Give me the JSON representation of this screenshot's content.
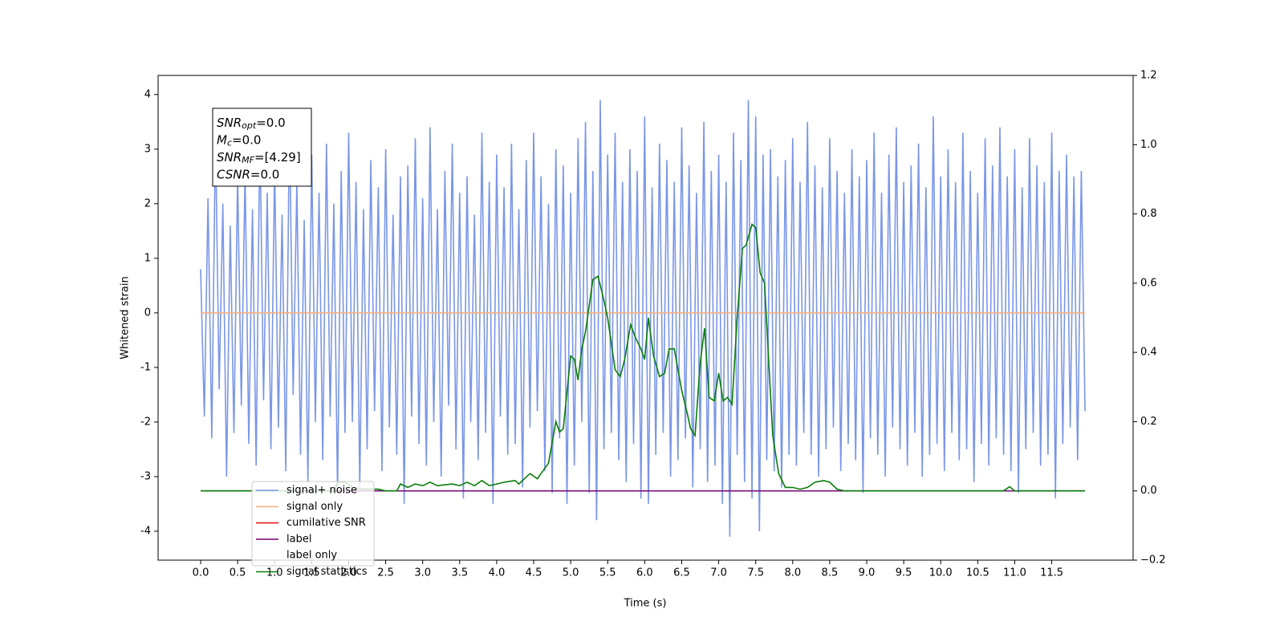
{
  "chart_data": {
    "type": "line",
    "xlabel": "Time (s)",
    "ylabel": "Whitened strain",
    "xlim": [
      -0.575,
      12.6
    ],
    "ylim": [
      -4.53,
      4.35
    ],
    "y2lim": [
      -0.2,
      1.2
    ],
    "xticks": [
      {
        "value": 0,
        "label": "0.0"
      },
      {
        "value": 0.5,
        "label": "0.5"
      },
      {
        "value": 1,
        "label": "1.0"
      },
      {
        "value": 1.5,
        "label": "1.5"
      },
      {
        "value": 2,
        "label": "2.0"
      },
      {
        "value": 2.5,
        "label": "2.5"
      },
      {
        "value": 3,
        "label": "3.0"
      },
      {
        "value": 3.5,
        "label": "3.5"
      },
      {
        "value": 4,
        "label": "4.0"
      },
      {
        "value": 4.5,
        "label": "4.5"
      },
      {
        "value": 5,
        "label": "5.0"
      },
      {
        "value": 5.5,
        "label": "5.5"
      },
      {
        "value": 6,
        "label": "6.0"
      },
      {
        "value": 6.5,
        "label": "6.5"
      },
      {
        "value": 7,
        "label": "7.0"
      },
      {
        "value": 7.5,
        "label": "7.5"
      },
      {
        "value": 8,
        "label": "8.0"
      },
      {
        "value": 8.5,
        "label": "8.5"
      },
      {
        "value": 9,
        "label": "9.0"
      },
      {
        "value": 9.5,
        "label": "9.5"
      },
      {
        "value": 10,
        "label": "10.0"
      },
      {
        "value": 10.5,
        "label": "10.5"
      },
      {
        "value": 11,
        "label": "11.0"
      },
      {
        "value": 11.5,
        "label": "11.5"
      }
    ],
    "yticks": [
      -4,
      -3,
      -2,
      -1,
      0,
      1,
      2,
      3,
      4
    ],
    "y2ticks": [
      {
        "value": -0.2,
        "label": "−0.2"
      },
      {
        "value": 0,
        "label": "0.0"
      },
      {
        "value": 0.2,
        "label": "0.2"
      },
      {
        "value": 0.4,
        "label": "0.4"
      },
      {
        "value": 0.6,
        "label": "0.6"
      },
      {
        "value": 0.8,
        "label": "0.8"
      },
      {
        "value": 1,
        "label": "1.0"
      },
      {
        "value": 1.2,
        "label": "1.2"
      }
    ],
    "annotation": [
      {
        "base": "SNR",
        "sub": "opt",
        "text": "=0.0"
      },
      {
        "base": "M",
        "sub": "c",
        "text": "=0.0"
      },
      {
        "base": "SNR",
        "sub": "MF",
        "text": "=[4.29]"
      },
      {
        "base": "CSNR",
        "text": "=0.0"
      }
    ],
    "series": [
      {
        "name": "signal+ noise",
        "color": "#7a96e8",
        "x": [
          0,
          0.05,
          0.1,
          0.15,
          0.2,
          0.25,
          0.3,
          0.35,
          0.4,
          0.45,
          0.5,
          0.55,
          0.6,
          0.65,
          0.7,
          0.75,
          0.8,
          0.85,
          0.9,
          0.95,
          1,
          1.05,
          1.1,
          1.15,
          1.2,
          1.25,
          1.3,
          1.35,
          1.4,
          1.45,
          1.5,
          1.55,
          1.6,
          1.65,
          1.7,
          1.75,
          1.8,
          1.85,
          1.9,
          1.95,
          2,
          2.05,
          2.1,
          2.15,
          2.2,
          2.25,
          2.3,
          2.35,
          2.4,
          2.45,
          2.5,
          2.55,
          2.6,
          2.65,
          2.7,
          2.75,
          2.8,
          2.85,
          2.9,
          2.95,
          3,
          3.05,
          3.1,
          3.15,
          3.2,
          3.25,
          3.3,
          3.35,
          3.4,
          3.45,
          3.5,
          3.55,
          3.6,
          3.65,
          3.7,
          3.75,
          3.8,
          3.85,
          3.9,
          3.95,
          4,
          4.05,
          4.1,
          4.15,
          4.2,
          4.25,
          4.3,
          4.35,
          4.4,
          4.45,
          4.5,
          4.55,
          4.6,
          4.65,
          4.7,
          4.75,
          4.8,
          4.85,
          4.9,
          4.95,
          5,
          5.05,
          5.1,
          5.15,
          5.2,
          5.25,
          5.3,
          5.35,
          5.4,
          5.45,
          5.5,
          5.55,
          5.6,
          5.65,
          5.7,
          5.75,
          5.8,
          5.85,
          5.9,
          5.95,
          6,
          6.05,
          6.1,
          6.15,
          6.2,
          6.25,
          6.3,
          6.35,
          6.4,
          6.45,
          6.5,
          6.55,
          6.6,
          6.65,
          6.7,
          6.75,
          6.8,
          6.85,
          6.9,
          6.95,
          7,
          7.05,
          7.1,
          7.15,
          7.2,
          7.25,
          7.3,
          7.35,
          7.4,
          7.45,
          7.5,
          7.55,
          7.6,
          7.65,
          7.7,
          7.75,
          7.8,
          7.85,
          7.9,
          7.95,
          8,
          8.05,
          8.1,
          8.15,
          8.2,
          8.25,
          8.3,
          8.35,
          8.4,
          8.45,
          8.5,
          8.55,
          8.6,
          8.65,
          8.7,
          8.75,
          8.8,
          8.85,
          8.9,
          8.95,
          9,
          9.05,
          9.1,
          9.15,
          9.2,
          9.25,
          9.3,
          9.35,
          9.4,
          9.45,
          9.5,
          9.55,
          9.6,
          9.65,
          9.7,
          9.75,
          9.8,
          9.85,
          9.9,
          9.95,
          10,
          10.05,
          10.1,
          10.15,
          10.2,
          10.25,
          10.3,
          10.35,
          10.4,
          10.45,
          10.5,
          10.55,
          10.6,
          10.65,
          10.7,
          10.75,
          10.8,
          10.85,
          10.9,
          10.95,
          11,
          11.05,
          11.1,
          11.15,
          11.2,
          11.25,
          11.3,
          11.35,
          11.4,
          11.45,
          11.5,
          11.55,
          11.6,
          11.65,
          11.7,
          11.75,
          11.8,
          11.85,
          11.9,
          11.95
        ],
        "values": [
          0.8,
          -1.9,
          2.1,
          -2.3,
          3.3,
          -1.4,
          2.0,
          -3.0,
          1.6,
          -2.2,
          2.5,
          -1.7,
          2.6,
          -2.4,
          1.9,
          -2.8,
          3.4,
          -1.6,
          2.2,
          -2.5,
          2.7,
          -2.1,
          1.8,
          -2.9,
          3.6,
          -1.5,
          2.4,
          -2.6,
          1.7,
          -3.1,
          2.9,
          -2.0,
          2.2,
          -2.7,
          3.1,
          -1.9,
          2.0,
          -3.3,
          2.6,
          -2.2,
          3.3,
          -2.0,
          2.4,
          -3.2,
          1.9,
          -2.5,
          2.8,
          -1.8,
          2.3,
          -2.9,
          3.0,
          -2.1,
          1.8,
          -2.6,
          2.5,
          -3.5,
          2.7,
          -1.9,
          3.2,
          -2.4,
          2.1,
          -2.8,
          3.4,
          -2.0,
          1.9,
          -3.0,
          2.6,
          -1.7,
          3.1,
          -2.5,
          2.2,
          -3.4,
          2.5,
          -2.0,
          1.8,
          -2.7,
          3.3,
          -2.2,
          2.4,
          -3.5,
          2.9,
          -1.9,
          2.3,
          -2.6,
          3.1,
          -2.4,
          1.9,
          -3.2,
          2.8,
          -2.1,
          3.3,
          -1.8,
          2.5,
          -2.9,
          2.0,
          -3.3,
          3.0,
          -2.3,
          2.7,
          -3.5,
          2.2,
          -2.8,
          3.2,
          -2.0,
          3.5,
          -3.3,
          2.6,
          -3.8,
          3.9,
          -2.5,
          2.9,
          -2.2,
          3.3,
          -2.7,
          2.4,
          -3.1,
          3.0,
          -2.4,
          2.6,
          -3.4,
          3.6,
          -3.5,
          2.3,
          -2.6,
          3.1,
          -2.2,
          2.8,
          -3.0,
          2.4,
          -2.7,
          3.4,
          -2.3,
          2.7,
          -3.2,
          2.2,
          -2.5,
          3.5,
          -3.1,
          2.6,
          -2.8,
          2.9,
          -3.5,
          2.4,
          -4.1,
          3.3,
          -2.6,
          2.8,
          -3.1,
          3.9,
          -3.4,
          3.6,
          -4.0,
          2.9,
          -2.7,
          3.0,
          -2.9,
          2.5,
          -3.2,
          2.8,
          -2.6,
          3.2,
          -2.8,
          2.4,
          -2.2,
          3.5,
          -2.6,
          2.7,
          -3.0,
          2.3,
          -2.5,
          3.2,
          -2.1,
          2.6,
          -2.9,
          2.2,
          -2.4,
          3.0,
          -2.7,
          2.5,
          -3.3,
          2.8,
          -2.3,
          3.3,
          -2.6,
          2.2,
          -3.0,
          2.9,
          -2.1,
          3.4,
          -2.5,
          2.4,
          -2.8,
          2.7,
          -2.2,
          3.1,
          -3.0,
          2.3,
          -2.6,
          3.6,
          -2.4,
          2.5,
          -2.9,
          3.0,
          -2.2,
          2.4,
          -2.7,
          3.3,
          -2.5,
          2.6,
          -3.1,
          2.2,
          -2.4,
          3.2,
          -2.8,
          2.7,
          -2.3,
          3.4,
          -2.6,
          2.5,
          -2.9,
          3.0,
          -3.3,
          2.3,
          -2.5,
          3.2,
          -2.2,
          2.7,
          -2.8,
          2.4,
          -2.6,
          3.3,
          -3.4,
          2.6,
          -2.4,
          2.9,
          -2.1,
          2.5,
          -2.7,
          2.6,
          -1.8
        ]
      },
      {
        "name": "signal only",
        "color": "#f4b183",
        "x": [
          0,
          11.95
        ],
        "values": [
          0,
          0
        ]
      },
      {
        "name": "label",
        "color": "#7b0f7b",
        "axis": "y2",
        "x": [
          0,
          11.95
        ],
        "values": [
          0,
          0
        ]
      },
      {
        "name": "signal statistics",
        "color": "#0a7d0a",
        "axis": "y2",
        "x": [
          0,
          1.8,
          1.85,
          1.95,
          2.05,
          2.2,
          2.4,
          2.5,
          2.65,
          2.7,
          2.8,
          2.9,
          3.0,
          3.1,
          3.2,
          3.4,
          3.5,
          3.6,
          3.7,
          3.8,
          3.9,
          4.0,
          4.1,
          4.25,
          4.3,
          4.45,
          4.55,
          4.6,
          4.7,
          4.8,
          4.85,
          4.9,
          5.0,
          5.05,
          5.1,
          5.15,
          5.2,
          5.3,
          5.37,
          5.45,
          5.5,
          5.6,
          5.67,
          5.73,
          5.81,
          5.88,
          5.95,
          6.0,
          6.05,
          6.12,
          6.2,
          6.27,
          6.33,
          6.4,
          6.5,
          6.58,
          6.62,
          6.68,
          6.75,
          6.81,
          6.87,
          6.94,
          7.0,
          7.06,
          7.12,
          7.18,
          7.25,
          7.32,
          7.37,
          7.45,
          7.5,
          7.56,
          7.62,
          7.73,
          7.81,
          7.9,
          8.0,
          8.1,
          8.2,
          8.3,
          8.42,
          8.5,
          8.6,
          8.7,
          10.85,
          10.93,
          11.0,
          11.95
        ],
        "values": [
          0,
          0,
          0.025,
          0.025,
          0.01,
          0.005,
          0.005,
          0,
          0,
          0.02,
          0.01,
          0.02,
          0.015,
          0.025,
          0.015,
          0.02,
          0.015,
          0.025,
          0.015,
          0.03,
          0.015,
          0.02,
          0.025,
          0.03,
          0.02,
          0.05,
          0.035,
          0.05,
          0.08,
          0.2,
          0.17,
          0.18,
          0.39,
          0.38,
          0.32,
          0.41,
          0.46,
          0.61,
          0.62,
          0.55,
          0.5,
          0.35,
          0.33,
          0.38,
          0.48,
          0.44,
          0.41,
          0.38,
          0.5,
          0.39,
          0.33,
          0.34,
          0.41,
          0.41,
          0.29,
          0.22,
          0.18,
          0.16,
          0.37,
          0.47,
          0.27,
          0.26,
          0.34,
          0.26,
          0.27,
          0.25,
          0.5,
          0.7,
          0.71,
          0.77,
          0.76,
          0.63,
          0.6,
          0.16,
          0.05,
          0.01,
          0.01,
          0.005,
          0.01,
          0.025,
          0.03,
          0.025,
          0.005,
          0,
          0,
          0.012,
          0,
          0
        ]
      }
    ],
    "legend": [
      {
        "name": "signal+ noise",
        "color": "#7a96e8"
      },
      {
        "name": "signal only",
        "color": "#f4b183"
      },
      {
        "name": "cumilative SNR",
        "color": "#e31a1c"
      },
      {
        "name": "label",
        "color": "#7b0f7b"
      },
      {
        "name": "label only"
      },
      {
        "name": "signal statistics",
        "color": "#0a7d0a"
      }
    ]
  }
}
